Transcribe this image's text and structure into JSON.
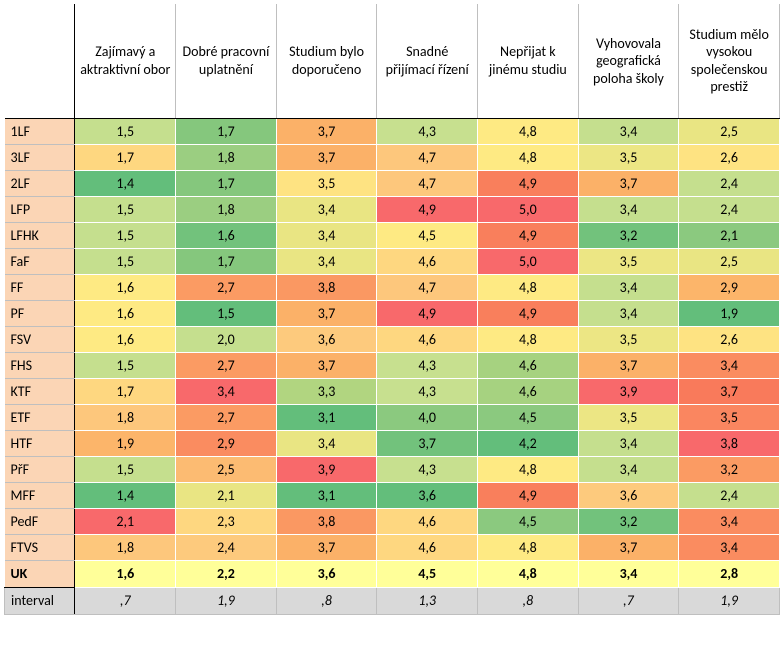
{
  "table": {
    "type": "heatmap-table",
    "row_label_bg": "#fbd5b5",
    "uk_row_bg": "#ffff99",
    "interval_row_bg": "#d9d9d9",
    "font_family": "Calibri",
    "font_size": 14,
    "columns": [
      "Zajímavý a aktraktivní obor",
      "Dobré pracovní uplatnění",
      "Studium bylo doporučeno",
      "Snadné přijímací řízení",
      "Nepřijat k jinému studiu",
      "Vyhovovala geografická poloha školy",
      "Studium mělo vysokou společenskou prestiž"
    ],
    "rows": [
      {
        "label": "1LF",
        "cells": [
          {
            "v": "1,5",
            "bg": "#c5df8e"
          },
          {
            "v": "1,7",
            "bg": "#85c77d"
          },
          {
            "v": "3,7",
            "bg": "#fbb168"
          },
          {
            "v": "4,3",
            "bg": "#c7e08f"
          },
          {
            "v": "4,8",
            "bg": "#feea83"
          },
          {
            "v": "3,4",
            "bg": "#c5df8e"
          },
          {
            "v": "2,5",
            "bg": "#e9e583"
          }
        ]
      },
      {
        "label": "3LF",
        "cells": [
          {
            "v": "1,7",
            "bg": "#fed780"
          },
          {
            "v": "1,8",
            "bg": "#9bce81"
          },
          {
            "v": "3,7",
            "bg": "#fbb168"
          },
          {
            "v": "4,7",
            "bg": "#fdc77c"
          },
          {
            "v": "4,8",
            "bg": "#feea83"
          },
          {
            "v": "3,5",
            "bg": "#ece684"
          },
          {
            "v": "2,6",
            "bg": "#fee382"
          }
        ]
      },
      {
        "label": "2LF",
        "cells": [
          {
            "v": "1,4",
            "bg": "#63be7b"
          },
          {
            "v": "1,7",
            "bg": "#85c77d"
          },
          {
            "v": "3,5",
            "bg": "#fee382"
          },
          {
            "v": "4,7",
            "bg": "#fdc77c"
          },
          {
            "v": "4,9",
            "bg": "#f97f5c"
          },
          {
            "v": "3,7",
            "bg": "#fbb168"
          },
          {
            "v": "2,4",
            "bg": "#c5df8e"
          }
        ]
      },
      {
        "label": "LFP",
        "cells": [
          {
            "v": "1,5",
            "bg": "#c5df8e"
          },
          {
            "v": "1,8",
            "bg": "#9bce81"
          },
          {
            "v": "3,4",
            "bg": "#e9e583"
          },
          {
            "v": "4,9",
            "bg": "#f8696b"
          },
          {
            "v": "5,0",
            "bg": "#f8696b"
          },
          {
            "v": "3,4",
            "bg": "#c5df8e"
          },
          {
            "v": "2,4",
            "bg": "#c5df8e"
          }
        ]
      },
      {
        "label": "LFHK",
        "cells": [
          {
            "v": "1,5",
            "bg": "#c5df8e"
          },
          {
            "v": "1,6",
            "bg": "#72c27c"
          },
          {
            "v": "3,4",
            "bg": "#e9e583"
          },
          {
            "v": "4,5",
            "bg": "#feea83"
          },
          {
            "v": "4,9",
            "bg": "#f97f5c"
          },
          {
            "v": "3,2",
            "bg": "#72c27c"
          },
          {
            "v": "2,1",
            "bg": "#8bc97f"
          }
        ]
      },
      {
        "label": "FaF",
        "cells": [
          {
            "v": "1,5",
            "bg": "#c5df8e"
          },
          {
            "v": "1,7",
            "bg": "#85c77d"
          },
          {
            "v": "3,4",
            "bg": "#e9e583"
          },
          {
            "v": "4,6",
            "bg": "#fed780"
          },
          {
            "v": "5,0",
            "bg": "#f8696b"
          },
          {
            "v": "3,5",
            "bg": "#ece684"
          },
          {
            "v": "2,5",
            "bg": "#e9e583"
          }
        ]
      },
      {
        "label": "FF",
        "cells": [
          {
            "v": "1,6",
            "bg": "#feea83"
          },
          {
            "v": "2,7",
            "bg": "#fb9b63"
          },
          {
            "v": "3,8",
            "bg": "#fa9862"
          },
          {
            "v": "4,7",
            "bg": "#fdc77c"
          },
          {
            "v": "4,8",
            "bg": "#feea83"
          },
          {
            "v": "3,4",
            "bg": "#c5df8e"
          },
          {
            "v": "2,9",
            "bg": "#fcb56a"
          }
        ]
      },
      {
        "label": "PF",
        "cells": [
          {
            "v": "1,6",
            "bg": "#feea83"
          },
          {
            "v": "1,5",
            "bg": "#63be7b"
          },
          {
            "v": "3,7",
            "bg": "#fbb168"
          },
          {
            "v": "4,9",
            "bg": "#f8696b"
          },
          {
            "v": "4,9",
            "bg": "#f97f5c"
          },
          {
            "v": "3,4",
            "bg": "#c5df8e"
          },
          {
            "v": "1,9",
            "bg": "#63be7b"
          }
        ]
      },
      {
        "label": "FSV",
        "cells": [
          {
            "v": "1,6",
            "bg": "#feea83"
          },
          {
            "v": "2,0",
            "bg": "#c5df8e"
          },
          {
            "v": "3,6",
            "bg": "#fdca7d"
          },
          {
            "v": "4,6",
            "bg": "#fed780"
          },
          {
            "v": "4,8",
            "bg": "#feea83"
          },
          {
            "v": "3,5",
            "bg": "#ece684"
          },
          {
            "v": "2,6",
            "bg": "#fee382"
          }
        ]
      },
      {
        "label": "FHS",
        "cells": [
          {
            "v": "1,5",
            "bg": "#c5df8e"
          },
          {
            "v": "2,7",
            "bg": "#fb9b63"
          },
          {
            "v": "3,7",
            "bg": "#fbb168"
          },
          {
            "v": "4,3",
            "bg": "#c7e08f"
          },
          {
            "v": "4,6",
            "bg": "#a6d280"
          },
          {
            "v": "3,7",
            "bg": "#fbb168"
          },
          {
            "v": "3,4",
            "bg": "#fa8c60"
          }
        ]
      },
      {
        "label": "KTF",
        "cells": [
          {
            "v": "1,7",
            "bg": "#fed780"
          },
          {
            "v": "3,4",
            "bg": "#f8696b"
          },
          {
            "v": "3,3",
            "bg": "#b1d580"
          },
          {
            "v": "4,3",
            "bg": "#c7e08f"
          },
          {
            "v": "4,6",
            "bg": "#a6d280"
          },
          {
            "v": "3,9",
            "bg": "#f8696b"
          },
          {
            "v": "3,7",
            "bg": "#f97a5b"
          }
        ]
      },
      {
        "label": "ETF",
        "cells": [
          {
            "v": "1,8",
            "bg": "#fdc77c"
          },
          {
            "v": "2,7",
            "bg": "#fb9b63"
          },
          {
            "v": "3,1",
            "bg": "#63be7b"
          },
          {
            "v": "4,0",
            "bg": "#8bc97f"
          },
          {
            "v": "4,5",
            "bg": "#8bc97f"
          },
          {
            "v": "3,5",
            "bg": "#ece684"
          },
          {
            "v": "3,5",
            "bg": "#fa8660"
          }
        ]
      },
      {
        "label": "HTF",
        "cells": [
          {
            "v": "1,9",
            "bg": "#fcb56a"
          },
          {
            "v": "2,9",
            "bg": "#fa8c60"
          },
          {
            "v": "3,4",
            "bg": "#e9e583"
          },
          {
            "v": "3,7",
            "bg": "#72c27c"
          },
          {
            "v": "4,2",
            "bg": "#63be7b"
          },
          {
            "v": "3,4",
            "bg": "#c5df8e"
          },
          {
            "v": "3,8",
            "bg": "#f8696b"
          }
        ]
      },
      {
        "label": "PřF",
        "cells": [
          {
            "v": "1,5",
            "bg": "#c5df8e"
          },
          {
            "v": "2,5",
            "bg": "#fcbb72"
          },
          {
            "v": "3,9",
            "bg": "#f8696b"
          },
          {
            "v": "4,3",
            "bg": "#c7e08f"
          },
          {
            "v": "4,8",
            "bg": "#feea83"
          },
          {
            "v": "3,4",
            "bg": "#c5df8e"
          },
          {
            "v": "3,2",
            "bg": "#fb9b63"
          }
        ]
      },
      {
        "label": "MFF",
        "cells": [
          {
            "v": "1,4",
            "bg": "#63be7b"
          },
          {
            "v": "2,1",
            "bg": "#e9e583"
          },
          {
            "v": "3,1",
            "bg": "#63be7b"
          },
          {
            "v": "3,6",
            "bg": "#63be7b"
          },
          {
            "v": "4,9",
            "bg": "#f97f5c"
          },
          {
            "v": "3,6",
            "bg": "#fdca7d"
          },
          {
            "v": "2,4",
            "bg": "#c5df8e"
          }
        ]
      },
      {
        "label": "PedF",
        "cells": [
          {
            "v": "2,1",
            "bg": "#f8696b"
          },
          {
            "v": "2,3",
            "bg": "#fed780"
          },
          {
            "v": "3,8",
            "bg": "#fa9862"
          },
          {
            "v": "4,6",
            "bg": "#fed780"
          },
          {
            "v": "4,5",
            "bg": "#8bc97f"
          },
          {
            "v": "3,2",
            "bg": "#72c27c"
          },
          {
            "v": "3,4",
            "bg": "#fa8c60"
          }
        ]
      },
      {
        "label": "FTVS",
        "cells": [
          {
            "v": "1,8",
            "bg": "#fdc77c"
          },
          {
            "v": "2,4",
            "bg": "#fdca7d"
          },
          {
            "v": "3,7",
            "bg": "#fbb168"
          },
          {
            "v": "4,6",
            "bg": "#fed780"
          },
          {
            "v": "4,8",
            "bg": "#feea83"
          },
          {
            "v": "3,7",
            "bg": "#fbb168"
          },
          {
            "v": "3,4",
            "bg": "#fa8c60"
          }
        ]
      }
    ],
    "uk_row": {
      "label": "UK",
      "cells": [
        "1,6",
        "2,2",
        "3,6",
        "4,5",
        "4,8",
        "3,4",
        "2,8"
      ]
    },
    "interval_row": {
      "label": "interval",
      "cells": [
        ",7",
        "1,9",
        ",8",
        "1,3",
        ",8",
        ",7",
        "1,9"
      ]
    }
  }
}
